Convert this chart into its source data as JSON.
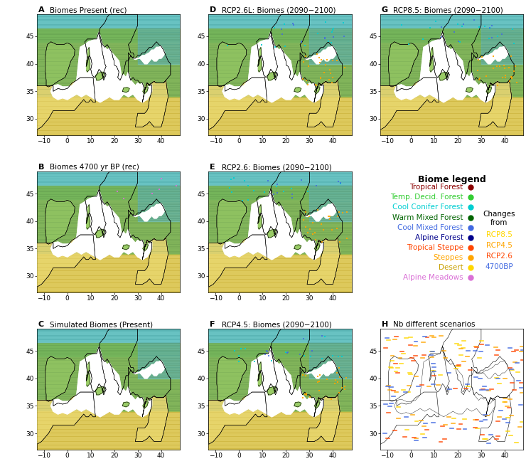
{
  "figure_size": [
    7.4,
    6.69
  ],
  "dpi": 100,
  "background_color": "#ffffff",
  "panel_titles": {
    "A": "Biomes Present (rec)",
    "B": "Biomes 4700 yr BP (rec)",
    "C": "Simulated Biomes (Present)",
    "D": "RCP2.6L: Biomes (2090−2100)",
    "E": "RCP2.6: Biomes (2090−2100)",
    "F": "RCP4.5: Biomes (2090−2100)",
    "G": "RCP8.5: Biomes (2090−2100)",
    "H": "Nb different scenarios"
  },
  "xlim": [
    -13,
    48
  ],
  "ylim": [
    27,
    49
  ],
  "xticks": [
    -10,
    0,
    10,
    20,
    30,
    40
  ],
  "yticks": [
    30,
    35,
    40,
    45
  ],
  "title_fontsize": 8,
  "tick_fontsize": 6.5,
  "legend_title_fontsize": 9,
  "legend_item_fontsize": 7.5,
  "biome_items": [
    [
      "Tropical Forest",
      "#8B0000",
      "#8B0000"
    ],
    [
      "Temp. Decid. Forest",
      "#32CD32",
      "#32CD32"
    ],
    [
      "Cool Conifer Forest",
      "#00CED1",
      "#00CED1"
    ],
    [
      "Warm Mixed Forest",
      "#006400",
      "#006400"
    ],
    [
      "Cool Mixed Forest",
      "#4169E1",
      "#4169E1"
    ],
    [
      "Alpine Forest",
      "#00008B",
      "#00008B"
    ],
    [
      "Tropical Steppe",
      "#FF4500",
      "#FF4500"
    ],
    [
      "Steppes",
      "#FFA500",
      "#FFA500"
    ],
    [
      "Desert",
      "#FFD700",
      "#c8a000"
    ],
    [
      "Alpine Meadows",
      "#DA70D6",
      "#DA70D6"
    ]
  ],
  "changes_items": [
    [
      "RCP8.5",
      "#FFD700"
    ],
    [
      "RCP4.5",
      "#FFA500"
    ],
    [
      "RCP2.6",
      "#FF4500"
    ],
    [
      "4700BP",
      "#4169E1"
    ]
  ],
  "zone_colors": {
    "north_bg": "#88CC66",
    "north_line": "#336633",
    "med_bg": "#99CC66",
    "med_line": "#336633",
    "south_bg": "#EEDD77",
    "south_line": "#AA8800",
    "cyan_bg": "#88DDDD",
    "cyan_line": "#006666"
  }
}
